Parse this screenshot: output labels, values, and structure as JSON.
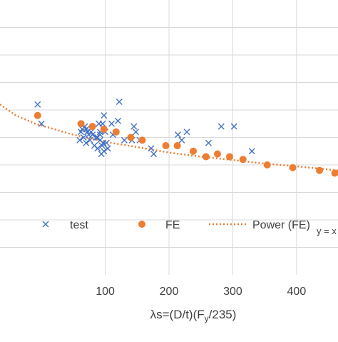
{
  "colors": {
    "test": "#4472C4",
    "fe": "#ED7D31",
    "trend": "#ED7D31",
    "grid": "#d9d9d9",
    "text": "#404040"
  },
  "chart_data": {
    "type": "scatter",
    "xlabel_parts": {
      "main": "λs=(D/t)(F",
      "sub": "y",
      "tail": "/235)"
    },
    "xlim": [
      -65,
      465
    ],
    "ylim": [
      0,
      1
    ],
    "x_ticks": [
      100,
      200,
      300,
      400
    ],
    "grid": true,
    "legend_placement": "bottom",
    "legend": {
      "test": "test",
      "fe": "FE",
      "trend_main": "Power (FE)",
      "trend_sub": "y = x"
    },
    "series": [
      {
        "name": "test",
        "marker": "x",
        "x": [
          -6,
          0,
          92,
          98,
          122,
          62,
          68,
          72,
          70,
          78,
          80,
          86,
          88,
          92,
          97,
          102,
          60,
          66,
          74,
          83,
          95,
          100,
          112,
          130,
          142,
          148,
          154,
          172,
          176,
          214,
          220,
          228,
          262,
          282,
          302,
          330,
          64,
          70,
          76,
          88,
          94,
          104,
          90,
          96,
          120,
          145,
          110,
          98,
          92
        ],
        "y": [
          0.62,
          0.55,
          0.52,
          0.45,
          0.63,
          0.52,
          0.54,
          0.52,
          0.53,
          0.52,
          0.51,
          0.5,
          0.5,
          0.49,
          0.48,
          0.48,
          0.49,
          0.5,
          0.51,
          0.47,
          0.47,
          0.52,
          0.51,
          0.49,
          0.49,
          0.52,
          0.49,
          0.46,
          0.44,
          0.51,
          0.49,
          0.52,
          0.48,
          0.54,
          0.54,
          0.45,
          0.53,
          0.48,
          0.49,
          0.46,
          0.44,
          0.46,
          0.55,
          0.55,
          0.56,
          0.54,
          0.55,
          0.58,
          0.51
        ]
      },
      {
        "name": "FE",
        "marker": "circle",
        "x": [
          -6,
          62,
          80,
          98,
          117,
          140,
          158,
          195,
          213,
          238,
          258,
          276,
          295,
          316,
          354,
          394,
          436,
          460
        ],
        "y": [
          0.58,
          0.55,
          0.54,
          0.53,
          0.52,
          0.5,
          0.49,
          0.47,
          0.47,
          0.45,
          0.43,
          0.44,
          0.43,
          0.42,
          0.4,
          0.39,
          0.38,
          0.37
        ]
      },
      {
        "name": "Power (FE)",
        "type": "trendline",
        "x": [
          -65,
          -40,
          -10,
          20,
          50,
          80,
          110,
          150,
          200,
          250,
          300,
          350,
          400,
          465
        ],
        "y": [
          0.62,
          0.58,
          0.55,
          0.53,
          0.51,
          0.495,
          0.48,
          0.465,
          0.445,
          0.43,
          0.418,
          0.405,
          0.395,
          0.38
        ]
      }
    ]
  }
}
